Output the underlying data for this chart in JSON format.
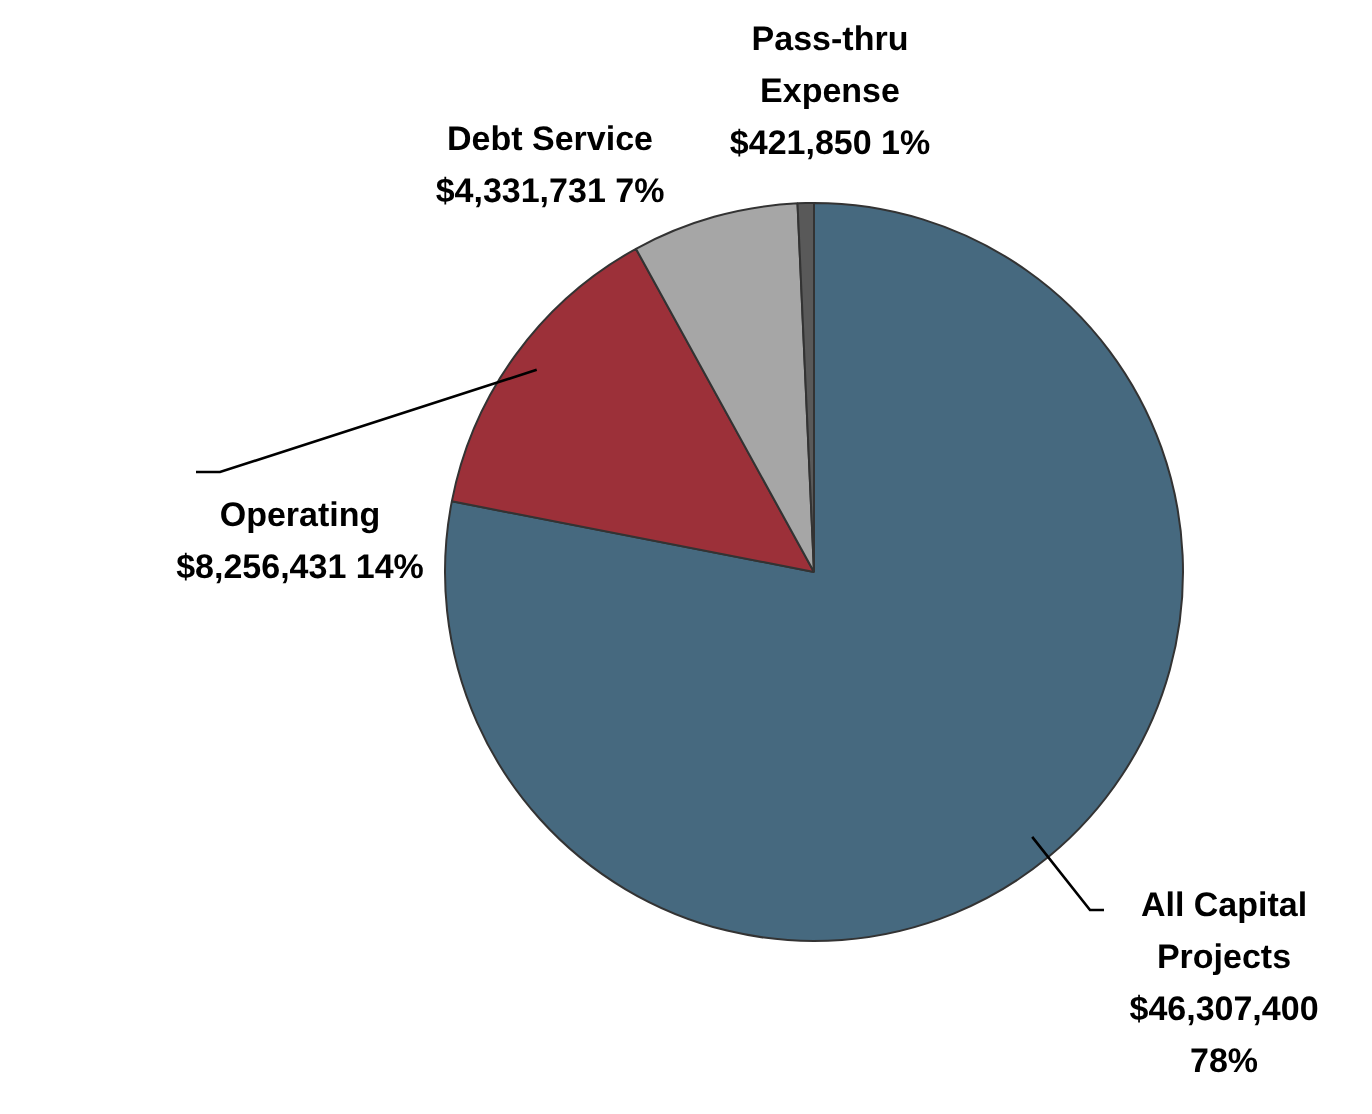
{
  "chart_data": {
    "type": "pie",
    "categories": [
      "All Capital Projects",
      "Operating",
      "Debt Service",
      "Pass-thru Expense"
    ],
    "values": [
      46307400,
      8256431,
      4331731,
      421850
    ],
    "value_labels": [
      "$46,307,400 78%",
      "$8,256,431  14%",
      "$4,331,731  7%",
      "$421,850  1%"
    ],
    "colors": [
      "#46697f",
      "#9c3039",
      "#a6a6a6",
      "#595959"
    ],
    "legend": false
  }
}
